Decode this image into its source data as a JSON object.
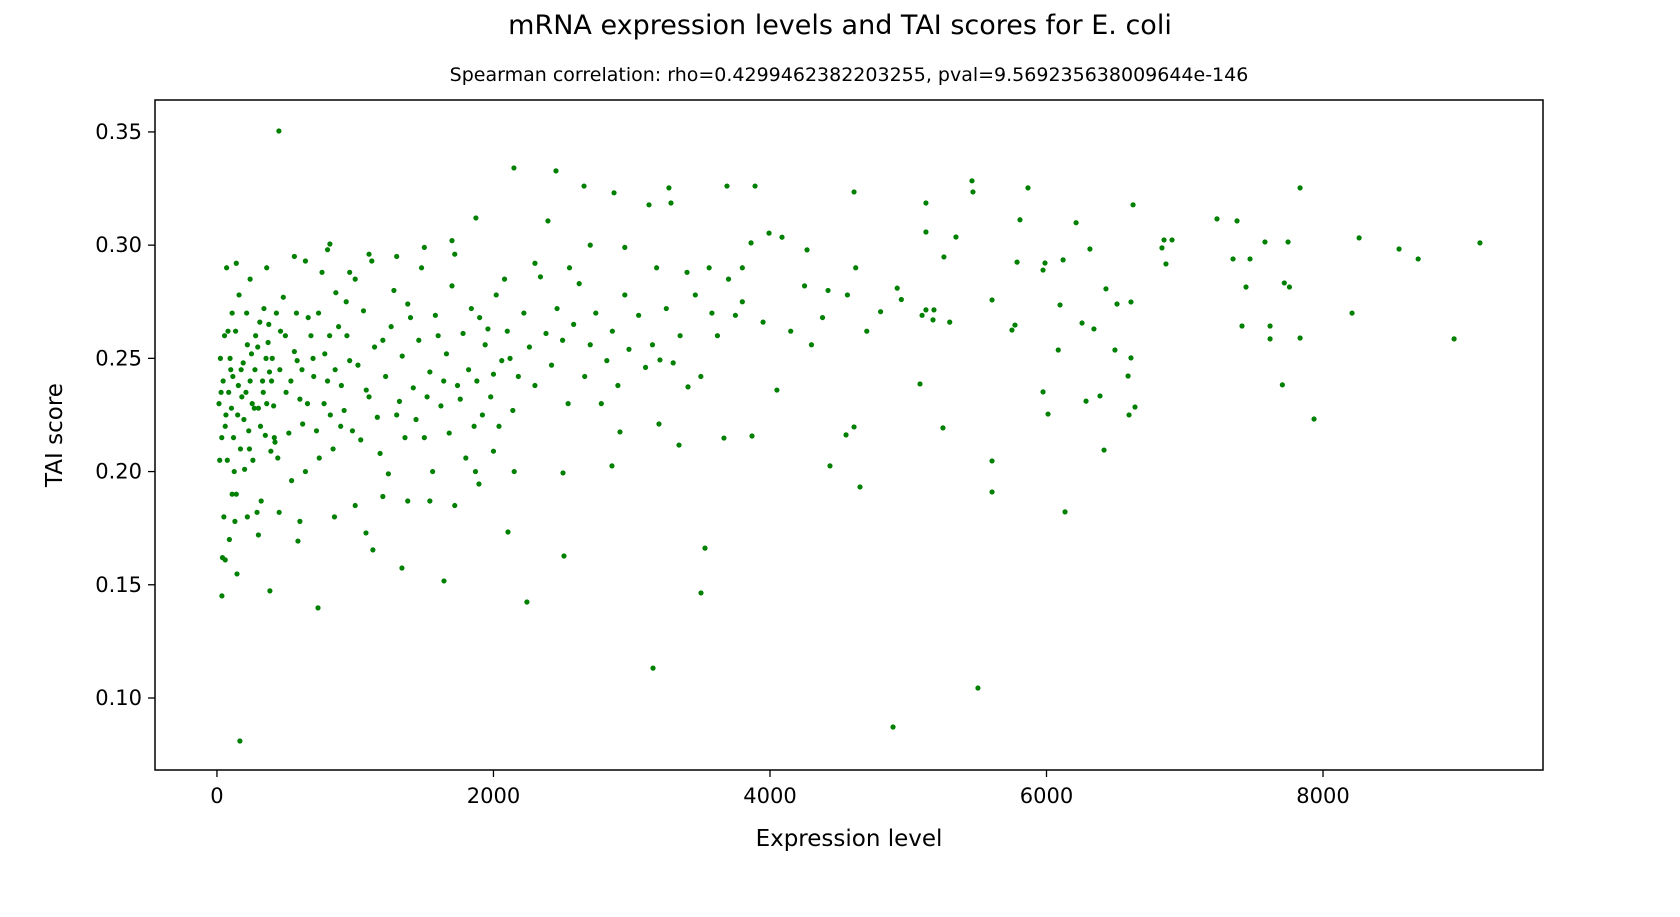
{
  "chart_data": {
    "type": "scatter",
    "title": "mRNA expression levels and TAI scores for E. coli",
    "subtitle": "Spearman correlation: rho=0.4299462382203255, pval=9.569235638009644e-146",
    "xlabel": "Expression level",
    "ylabel": "TAI score",
    "xlim": [
      -448,
      9591
    ],
    "ylim": [
      0.0682,
      0.3641
    ],
    "xticks": [
      0,
      2000,
      4000,
      6000,
      8000
    ],
    "xtick_labels": [
      "0",
      "2000",
      "4000",
      "6000",
      "8000"
    ],
    "yticks": [
      0.1,
      0.15,
      0.2,
      0.25,
      0.3,
      0.35
    ],
    "ytick_labels": [
      "0.10",
      "0.15",
      "0.20",
      "0.25",
      "0.30",
      "0.35"
    ],
    "grid": false,
    "color": "#008000",
    "points": [
      [
        448,
        0.3504
      ],
      [
        166,
        0.081
      ],
      [
        4890,
        0.0872
      ],
      [
        5504,
        0.1044
      ],
      [
        3154,
        0.1132
      ],
      [
        9135,
        0.301
      ],
      [
        8948,
        0.2586
      ],
      [
        8688,
        0.2939
      ],
      [
        8550,
        0.2983
      ],
      [
        8261,
        0.3032
      ],
      [
        8210,
        0.27
      ],
      [
        7935,
        0.2232
      ],
      [
        7834,
        0.3253
      ],
      [
        7834,
        0.259
      ],
      [
        7757,
        0.2815
      ],
      [
        7720,
        0.2833
      ],
      [
        7706,
        0.2383
      ],
      [
        7747,
        0.3014
      ],
      [
        7617,
        0.2643
      ],
      [
        7617,
        0.2586
      ],
      [
        7580,
        0.3014
      ],
      [
        7472,
        0.2939
      ],
      [
        7443,
        0.2815
      ],
      [
        7414,
        0.2643
      ],
      [
        7378,
        0.3107
      ],
      [
        7349,
        0.2939
      ],
      [
        7233,
        0.3116
      ],
      [
        6864,
        0.2917
      ],
      [
        6835,
        0.2988
      ],
      [
        6908,
        0.3023
      ],
      [
        6850,
        0.3023
      ],
      [
        6626,
        0.3178
      ],
      [
        6611,
        0.2749
      ],
      [
        6611,
        0.2502
      ],
      [
        6510,
        0.274
      ],
      [
        6495,
        0.2537
      ],
      [
        6430,
        0.2807
      ],
      [
        6387,
        0.2334
      ],
      [
        6343,
        0.263
      ],
      [
        6314,
        0.2983
      ],
      [
        6257,
        0.2656
      ],
      [
        6214,
        0.3099
      ],
      [
        6120,
        0.2935
      ],
      [
        6098,
        0.2736
      ],
      [
        6085,
        0.2537
      ],
      [
        5989,
        0.2921
      ],
      [
        5975,
        0.289
      ],
      [
        5866,
        0.3253
      ],
      [
        5808,
        0.3112
      ],
      [
        5787,
        0.2925
      ],
      [
        5772,
        0.2647
      ],
      [
        5750,
        0.2625
      ],
      [
        5606,
        0.2758
      ],
      [
        6011,
        0.2254
      ],
      [
        5975,
        0.2352
      ],
      [
        5606,
        0.191
      ],
      [
        5606,
        0.2047
      ],
      [
        5461,
        0.3284
      ],
      [
        5468,
        0.3235
      ],
      [
        5345,
        0.3036
      ],
      [
        5258,
        0.2948
      ],
      [
        5186,
        0.2714
      ],
      [
        5179,
        0.267
      ],
      [
        5251,
        0.2193
      ],
      [
        5128,
        0.2714
      ],
      [
        5100,
        0.269
      ],
      [
        5128,
        0.3186
      ],
      [
        5128,
        0.3058
      ],
      [
        5085,
        0.2387
      ],
      [
        4608,
        0.3235
      ],
      [
        4651,
        0.1932
      ],
      [
        4608,
        0.2197
      ],
      [
        4550,
        0.2162
      ],
      [
        4434,
        0.2025
      ],
      [
        6134,
        0.1822
      ],
      [
        6416,
        0.2095
      ],
      [
        6640,
        0.2285
      ],
      [
        6597,
        0.225
      ],
      [
        6590,
        0.2422
      ],
      [
        6286,
        0.2311
      ],
      [
        2857,
        0.2025
      ],
      [
        3197,
        0.221
      ],
      [
        3342,
        0.2117
      ],
      [
        3530,
        0.1662
      ],
      [
        3501,
        0.1464
      ],
      [
        2510,
        0.1627
      ],
      [
        2242,
        0.1424
      ],
      [
        1642,
        0.1517
      ],
      [
        1338,
        0.1574
      ],
      [
        1128,
        0.1654
      ],
      [
        1078,
        0.1729
      ],
      [
        731,
        0.1398
      ],
      [
        383,
        0.1473
      ],
      [
        36,
        0.1451
      ],
      [
        145,
        0.1548
      ],
      [
        586,
        0.1693
      ],
      [
        2148,
        0.3341
      ],
      [
        2452,
        0.3328
      ],
      [
        2655,
        0.3261
      ],
      [
        2872,
        0.3231
      ],
      [
        3269,
        0.3253
      ],
      [
        3689,
        0.3261
      ],
      [
        3892,
        0.3261
      ],
      [
        3125,
        0.3178
      ],
      [
        3284,
        0.3186
      ],
      [
        3993,
        0.3053
      ],
      [
        4087,
        0.3035
      ],
      [
        4268,
        0.2979
      ],
      [
        3863,
        0.301
      ],
      [
        2394,
        0.3107
      ],
      [
        1873,
        0.312
      ],
      [
        817,
        0.3005
      ],
      [
        3667,
        0.2148
      ],
      [
        3870,
        0.2157
      ],
      [
        3407,
        0.2374
      ],
      [
        3204,
        0.2493
      ],
      [
        2915,
        0.2175
      ],
      [
        2503,
        0.1994
      ],
      [
        1895,
        0.1945
      ],
      [
        2105,
        0.1733
      ],
      [
        4800,
        0.2706
      ],
      [
        4700,
        0.262
      ],
      [
        4920,
        0.281
      ],
      [
        4380,
        0.268
      ],
      [
        4300,
        0.256
      ],
      [
        4250,
        0.282
      ],
      [
        4150,
        0.262
      ],
      [
        4050,
        0.236
      ],
      [
        3950,
        0.266
      ],
      [
        3800,
        0.275
      ],
      [
        3750,
        0.269
      ],
      [
        3620,
        0.26
      ],
      [
        3580,
        0.27
      ],
      [
        3500,
        0.242
      ],
      [
        3460,
        0.278
      ],
      [
        3400,
        0.288
      ],
      [
        3350,
        0.26
      ],
      [
        3300,
        0.248
      ],
      [
        3250,
        0.272
      ],
      [
        3150,
        0.256
      ],
      [
        3100,
        0.246
      ],
      [
        3050,
        0.269
      ],
      [
        2980,
        0.254
      ],
      [
        2950,
        0.278
      ],
      [
        2900,
        0.238
      ],
      [
        2860,
        0.262
      ],
      [
        2820,
        0.249
      ],
      [
        2780,
        0.23
      ],
      [
        2740,
        0.27
      ],
      [
        2700,
        0.256
      ],
      [
        2660,
        0.242
      ],
      [
        2620,
        0.283
      ],
      [
        2580,
        0.265
      ],
      [
        2540,
        0.23
      ],
      [
        2500,
        0.258
      ],
      [
        2460,
        0.272
      ],
      [
        2420,
        0.247
      ],
      [
        2380,
        0.261
      ],
      [
        2340,
        0.286
      ],
      [
        2300,
        0.238
      ],
      [
        2260,
        0.255
      ],
      [
        2220,
        0.27
      ],
      [
        2180,
        0.242
      ],
      [
        2140,
        0.227
      ],
      [
        2100,
        0.262
      ],
      [
        2060,
        0.249
      ],
      [
        2020,
        0.278
      ],
      [
        1980,
        0.233
      ],
      [
        1940,
        0.256
      ],
      [
        1900,
        0.268
      ],
      [
        1860,
        0.22
      ],
      [
        1820,
        0.245
      ],
      [
        1780,
        0.261
      ],
      [
        1740,
        0.238
      ],
      [
        1700,
        0.282
      ],
      [
        1660,
        0.252
      ],
      [
        1620,
        0.229
      ],
      [
        1580,
        0.269
      ],
      [
        1540,
        0.244
      ],
      [
        1500,
        0.215
      ],
      [
        1460,
        0.258
      ],
      [
        1420,
        0.237
      ],
      [
        1380,
        0.274
      ],
      [
        1340,
        0.251
      ],
      [
        1300,
        0.225
      ],
      [
        1260,
        0.264
      ],
      [
        1220,
        0.242
      ],
      [
        1180,
        0.208
      ],
      [
        1140,
        0.255
      ],
      [
        1100,
        0.233
      ],
      [
        1060,
        0.271
      ],
      [
        1020,
        0.247
      ],
      [
        980,
        0.218
      ],
      [
        940,
        0.26
      ],
      [
        900,
        0.238
      ],
      [
        860,
        0.279
      ],
      [
        820,
        0.225
      ],
      [
        780,
        0.252
      ],
      [
        740,
        0.206
      ],
      [
        700,
        0.242
      ],
      [
        660,
        0.268
      ],
      [
        620,
        0.221
      ],
      [
        580,
        0.249
      ],
      [
        540,
        0.196
      ],
      [
        500,
        0.235
      ],
      [
        460,
        0.262
      ],
      [
        420,
        0.213
      ],
      [
        380,
        0.244
      ],
      [
        340,
        0.272
      ],
      [
        300,
        0.228
      ],
      [
        260,
        0.205
      ],
      [
        220,
        0.256
      ],
      [
        180,
        0.233
      ],
      [
        140,
        0.19
      ],
      [
        100,
        0.245
      ],
      [
        60,
        0.22
      ],
      [
        30,
        0.235
      ],
      [
        20,
        0.205
      ],
      [
        80,
        0.262
      ],
      [
        120,
        0.215
      ],
      [
        160,
        0.278
      ],
      [
        200,
        0.201
      ],
      [
        240,
        0.24
      ],
      [
        280,
        0.26
      ],
      [
        320,
        0.187
      ],
      [
        360,
        0.23
      ],
      [
        400,
        0.25
      ],
      [
        440,
        0.206
      ],
      [
        480,
        0.277
      ],
      [
        520,
        0.217
      ],
      [
        560,
        0.253
      ],
      [
        600,
        0.232
      ],
      [
        640,
        0.2
      ],
      [
        680,
        0.26
      ],
      [
        720,
        0.218
      ],
      [
        760,
        0.288
      ],
      [
        800,
        0.24
      ],
      [
        840,
        0.21
      ],
      [
        880,
        0.264
      ],
      [
        920,
        0.227
      ],
      [
        960,
        0.249
      ],
      [
        1000,
        0.285
      ],
      [
        1040,
        0.214
      ],
      [
        1080,
        0.236
      ],
      [
        1120,
        0.293
      ],
      [
        1160,
        0.224
      ],
      [
        1200,
        0.258
      ],
      [
        1240,
        0.199
      ],
      [
        1280,
        0.28
      ],
      [
        1320,
        0.231
      ],
      [
        1360,
        0.215
      ],
      [
        1400,
        0.268
      ],
      [
        1440,
        0.223
      ],
      [
        1480,
        0.29
      ],
      [
        1520,
        0.233
      ],
      [
        1560,
        0.2
      ],
      [
        1600,
        0.26
      ],
      [
        1640,
        0.24
      ],
      [
        1680,
        0.217
      ],
      [
        1720,
        0.296
      ],
      [
        1760,
        0.232
      ],
      [
        1800,
        0.206
      ],
      [
        1840,
        0.272
      ],
      [
        1880,
        0.24
      ],
      [
        1920,
        0.225
      ],
      [
        1960,
        0.263
      ],
      [
        2000,
        0.243
      ],
      [
        2040,
        0.22
      ],
      [
        2080,
        0.285
      ],
      [
        2120,
        0.25
      ],
      [
        50,
        0.18
      ],
      [
        70,
        0.29
      ],
      [
        90,
        0.17
      ],
      [
        110,
        0.27
      ],
      [
        130,
        0.178
      ],
      [
        150,
        0.225
      ],
      [
        170,
        0.21
      ],
      [
        190,
        0.248
      ],
      [
        210,
        0.235
      ],
      [
        230,
        0.218
      ],
      [
        250,
        0.252
      ],
      [
        270,
        0.228
      ],
      [
        290,
        0.182
      ],
      [
        310,
        0.266
      ],
      [
        330,
        0.24
      ],
      [
        350,
        0.216
      ],
      [
        370,
        0.257
      ],
      [
        390,
        0.209
      ],
      [
        410,
        0.229
      ],
      [
        430,
        0.27
      ],
      [
        15,
        0.23
      ],
      [
        25,
        0.25
      ],
      [
        35,
        0.215
      ],
      [
        45,
        0.24
      ],
      [
        55,
        0.26
      ],
      [
        65,
        0.225
      ],
      [
        75,
        0.205
      ],
      [
        85,
        0.235
      ],
      [
        95,
        0.25
      ],
      [
        105,
        0.228
      ],
      [
        115,
        0.242
      ],
      [
        125,
        0.2
      ],
      [
        135,
        0.262
      ],
      [
        155,
        0.238
      ],
      [
        175,
        0.245
      ],
      [
        195,
        0.223
      ],
      [
        215,
        0.27
      ],
      [
        235,
        0.21
      ],
      [
        255,
        0.23
      ],
      [
        275,
        0.245
      ],
      [
        295,
        0.255
      ],
      [
        315,
        0.22
      ],
      [
        335,
        0.235
      ],
      [
        355,
        0.25
      ],
      [
        375,
        0.265
      ],
      [
        395,
        0.24
      ],
      [
        415,
        0.215
      ],
      [
        455,
        0.245
      ],
      [
        495,
        0.26
      ],
      [
        535,
        0.24
      ],
      [
        575,
        0.27
      ],
      [
        615,
        0.245
      ],
      [
        655,
        0.23
      ],
      [
        695,
        0.25
      ],
      [
        735,
        0.27
      ],
      [
        775,
        0.23
      ],
      [
        815,
        0.26
      ],
      [
        855,
        0.245
      ],
      [
        895,
        0.22
      ],
      [
        935,
        0.275
      ],
      [
        40,
        0.162
      ],
      [
        60,
        0.161
      ],
      [
        110,
        0.19
      ],
      [
        220,
        0.18
      ],
      [
        300,
        0.172
      ],
      [
        450,
        0.182
      ],
      [
        600,
        0.178
      ],
      [
        850,
        0.18
      ],
      [
        1000,
        0.185
      ],
      [
        1200,
        0.189
      ],
      [
        1380,
        0.187
      ],
      [
        1540,
        0.187
      ],
      [
        1720,
        0.185
      ],
      [
        1870,
        0.2
      ],
      [
        2000,
        0.209
      ],
      [
        2150,
        0.2
      ],
      [
        1100,
        0.296
      ],
      [
        1300,
        0.295
      ],
      [
        1500,
        0.299
      ],
      [
        1700,
        0.302
      ],
      [
        140,
        0.292
      ],
      [
        240,
        0.285
      ],
      [
        360,
        0.29
      ],
      [
        560,
        0.295
      ],
      [
        640,
        0.293
      ],
      [
        800,
        0.298
      ],
      [
        960,
        0.288
      ],
      [
        2300,
        0.292
      ],
      [
        2550,
        0.29
      ],
      [
        2700,
        0.3
      ],
      [
        2950,
        0.299
      ],
      [
        3180,
        0.29
      ],
      [
        3560,
        0.29
      ],
      [
        3700,
        0.285
      ],
      [
        3800,
        0.29
      ],
      [
        4420,
        0.28
      ],
      [
        4560,
        0.278
      ],
      [
        4620,
        0.29
      ],
      [
        4950,
        0.276
      ],
      [
        5300,
        0.266
      ]
    ]
  }
}
